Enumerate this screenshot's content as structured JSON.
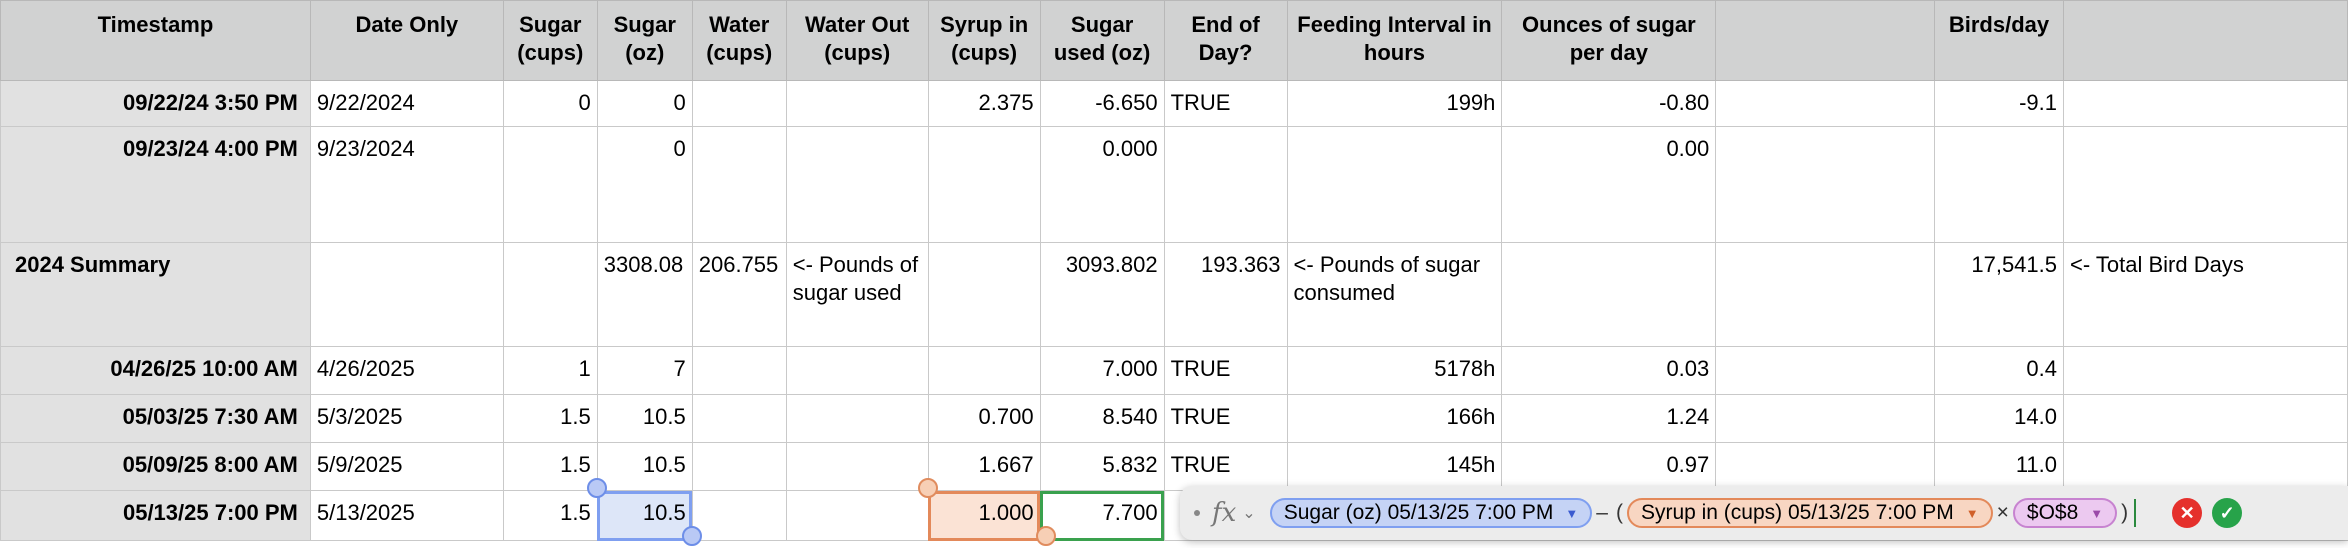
{
  "headers": {
    "timestamp": "Timestamp",
    "date_only": "Date Only",
    "sugar_cups": "Sugar (cups)",
    "sugar_oz": "Sugar (oz)",
    "water_cups": "Water (cups)",
    "water_out": "Water Out (cups)",
    "syrup_in": "Syrup in (cups)",
    "sugar_used": "Sugar used (oz)",
    "end_of_day": "End of Day?",
    "feeding_interval": "Feeding Interval in hours",
    "ounces_per_day": "Ounces of sugar per day",
    "blank": "",
    "birds_per_day": "Birds/day",
    "notes": ""
  },
  "rows": {
    "r1": {
      "timestamp": "09/22/24 3:50 PM",
      "date": "9/22/2024",
      "sugar_cups": "0",
      "sugar_oz": "0",
      "water_cups": "",
      "water_out": "",
      "syrup_in": "2.375",
      "sugar_used": "-6.650",
      "end_of_day": "TRUE",
      "interval": "199h",
      "oz_per_day": "-0.80",
      "birds": "-9.1",
      "notes": ""
    },
    "r2": {
      "timestamp": "09/23/24 4:00 PM",
      "date": "9/23/2024",
      "sugar_cups": "",
      "sugar_oz": "0",
      "water_cups": "",
      "water_out": "",
      "syrup_in": "",
      "sugar_used": "0.000",
      "end_of_day": "",
      "interval": "",
      "oz_per_day": "0.00",
      "birds": "",
      "notes": ""
    },
    "r3": {
      "timestamp": "2024 Summary",
      "date": "",
      "sugar_cups": "",
      "sugar_oz": "3308.08",
      "water_cups": "206.755",
      "water_out": "<- Pounds of sugar used",
      "syrup_in": "",
      "sugar_used": "3093.802",
      "end_of_day": "193.363",
      "interval": "<- Pounds of sugar consumed",
      "oz_per_day": "",
      "birds": "17,541.5",
      "notes": "<- Total Bird Days"
    },
    "r4": {
      "timestamp": "04/26/25 10:00 AM",
      "date": "4/26/2025",
      "sugar_cups": "1",
      "sugar_oz": "7",
      "water_cups": "",
      "water_out": "",
      "syrup_in": "",
      "sugar_used": "7.000",
      "end_of_day": "TRUE",
      "interval": "5178h",
      "oz_per_day": "0.03",
      "birds": "0.4",
      "notes": ""
    },
    "r5": {
      "timestamp": "05/03/25 7:30 AM",
      "date": "5/3/2025",
      "sugar_cups": "1.5",
      "sugar_oz": "10.5",
      "water_cups": "",
      "water_out": "",
      "syrup_in": "0.700",
      "sugar_used": "8.540",
      "end_of_day": "TRUE",
      "interval": "166h",
      "oz_per_day": "1.24",
      "birds": "14.0",
      "notes": ""
    },
    "r6": {
      "timestamp": "05/09/25 8:00 AM",
      "date": "5/9/2025",
      "sugar_cups": "1.5",
      "sugar_oz": "10.5",
      "water_cups": "",
      "water_out": "",
      "syrup_in": "1.667",
      "sugar_used": "5.832",
      "end_of_day": "TRUE",
      "interval": "145h",
      "oz_per_day": "0.97",
      "birds": "11.0",
      "notes": ""
    },
    "r7": {
      "timestamp": "05/13/25 7:00 PM",
      "date": "5/13/2025",
      "sugar_cups": "1.5",
      "sugar_oz": "10.5",
      "water_cups": "",
      "water_out": "",
      "syrup_in": "1.000",
      "sugar_used": "7.700",
      "end_of_day": "",
      "interval": "",
      "oz_per_day": "",
      "birds": "",
      "notes": ""
    }
  },
  "formula_bar": {
    "fx_icon": "fx",
    "token1": "Sugar (oz) 05/13/25 7:00 PM",
    "op_minus": "–",
    "open_paren": "(",
    "token2": "Syrup in (cups) 05/13/25 7:00 PM",
    "op_times": "×",
    "token3": "$O$8",
    "close_paren": ")",
    "cancel_symbol": "✕",
    "accept_symbol": "✓"
  },
  "colors": {
    "header_bg": "#d1d2d2",
    "blue_ref": "#7f9ff0",
    "orange_ref": "#e3895a",
    "purple_ref": "#c783d0",
    "green_edit": "#3aa14e"
  }
}
